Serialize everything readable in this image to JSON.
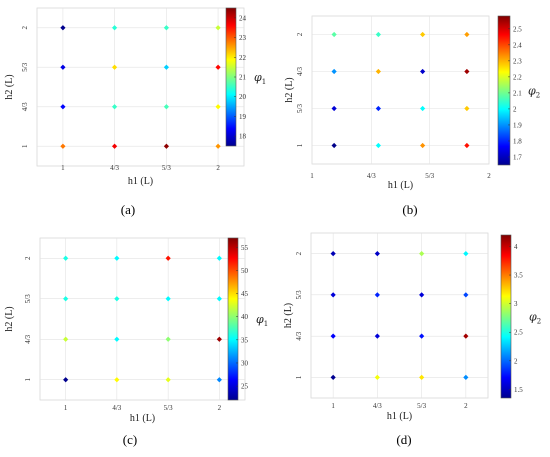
{
  "chart_data": [
    {
      "type": "scatter",
      "panel_label": "(a)",
      "xlabel": "h1 (L)",
      "ylabel": "h2 (L)",
      "xticks": [
        "1",
        "4/3",
        "5/3",
        "2"
      ],
      "yticks": [
        "1",
        "4/3",
        "5/3",
        "2"
      ],
      "xlim": [
        0.833,
        2.167
      ],
      "ylim": [
        0.833,
        2.167
      ],
      "colorbar": {
        "symbol": "φ",
        "subscript": "1",
        "min": 17.5,
        "max": 24.5,
        "ticks": [
          18,
          19,
          20,
          21,
          22,
          23,
          24
        ]
      },
      "points": [
        {
          "x": 1,
          "y": 2,
          "value": 17.6
        },
        {
          "x": 1.333,
          "y": 2,
          "value": 20.4
        },
        {
          "x": 1.667,
          "y": 2,
          "value": 20.5
        },
        {
          "x": 2,
          "y": 2,
          "value": 21.5
        },
        {
          "x": 1,
          "y": 1.667,
          "value": 18.2
        },
        {
          "x": 1.333,
          "y": 1.667,
          "value": 22.1
        },
        {
          "x": 1.667,
          "y": 1.667,
          "value": 19.8
        },
        {
          "x": 2,
          "y": 1.667,
          "value": 23.6
        },
        {
          "x": 1,
          "y": 1.333,
          "value": 18.4
        },
        {
          "x": 1.333,
          "y": 1.333,
          "value": 20.5
        },
        {
          "x": 1.667,
          "y": 1.333,
          "value": 20.6
        },
        {
          "x": 2,
          "y": 1.333,
          "value": 21.9
        },
        {
          "x": 1,
          "y": 1,
          "value": 22.8
        },
        {
          "x": 1.333,
          "y": 1,
          "value": 23.7
        },
        {
          "x": 1.667,
          "y": 1,
          "value": 24.4
        },
        {
          "x": 2,
          "y": 1,
          "value": 22.6
        }
      ]
    },
    {
      "type": "scatter",
      "panel_label": "(b)",
      "xlabel": "h1 (L)",
      "ylabel": "h2 (L)",
      "xticks": [
        "1",
        "4/3",
        "5/3",
        "2"
      ],
      "yticks": [
        "1",
        "5/3",
        "4/3",
        "2"
      ],
      "xlim": [
        1,
        2
      ],
      "ylim": [
        0,
        1
      ],
      "colorbar": {
        "symbol": "φ",
        "subscript": "2",
        "min": 1.65,
        "max": 2.58,
        "ticks": [
          1.7,
          1.8,
          1.9,
          2,
          2.1,
          2.2,
          2.3,
          2.4,
          2.5
        ]
      },
      "points": [
        {
          "x": 1.125,
          "y": 0.875,
          "value": 2.08
        },
        {
          "x": 1.375,
          "y": 0.875,
          "value": 2.05
        },
        {
          "x": 1.625,
          "y": 0.875,
          "value": 2.28
        },
        {
          "x": 1.875,
          "y": 0.875,
          "value": 2.32
        },
        {
          "x": 1.125,
          "y": 0.625,
          "value": 1.9
        },
        {
          "x": 1.375,
          "y": 0.625,
          "value": 2.3
        },
        {
          "x": 1.625,
          "y": 0.625,
          "value": 1.72
        },
        {
          "x": 1.875,
          "y": 0.625,
          "value": 2.55
        },
        {
          "x": 1.125,
          "y": 0.375,
          "value": 1.73
        },
        {
          "x": 1.375,
          "y": 0.375,
          "value": 1.8
        },
        {
          "x": 1.625,
          "y": 0.375,
          "value": 2.0
        },
        {
          "x": 1.875,
          "y": 0.375,
          "value": 2.28
        },
        {
          "x": 1.125,
          "y": 0.125,
          "value": 1.66
        },
        {
          "x": 1.375,
          "y": 0.125,
          "value": 2.0
        },
        {
          "x": 1.625,
          "y": 0.125,
          "value": 2.33
        },
        {
          "x": 1.875,
          "y": 0.125,
          "value": 2.45
        }
      ]
    },
    {
      "type": "scatter",
      "panel_label": "(c)",
      "xlabel": "h1 (L)",
      "ylabel": "h2 (L)",
      "xticks": [
        "1",
        "4/3",
        "5/3",
        "2"
      ],
      "yticks": [
        "1",
        "4/3",
        "5/3",
        "2"
      ],
      "xlim": [
        0.833,
        2.167
      ],
      "ylim": [
        0.833,
        2.167
      ],
      "colorbar": {
        "symbol": "φ",
        "subscript": "1",
        "min": 22,
        "max": 57,
        "ticks": [
          25,
          30,
          35,
          40,
          45,
          50,
          55
        ]
      },
      "points": [
        {
          "x": 1,
          "y": 2,
          "value": 36
        },
        {
          "x": 1.333,
          "y": 2,
          "value": 35
        },
        {
          "x": 1.667,
          "y": 2,
          "value": 52
        },
        {
          "x": 2,
          "y": 2,
          "value": 35
        },
        {
          "x": 1,
          "y": 1.667,
          "value": 36
        },
        {
          "x": 1.333,
          "y": 1.667,
          "value": 36
        },
        {
          "x": 1.667,
          "y": 1.667,
          "value": 35
        },
        {
          "x": 2,
          "y": 1.667,
          "value": 35
        },
        {
          "x": 1,
          "y": 1.333,
          "value": 42
        },
        {
          "x": 1.333,
          "y": 1.333,
          "value": 35
        },
        {
          "x": 1.667,
          "y": 1.333,
          "value": 40
        },
        {
          "x": 2,
          "y": 1.333,
          "value": 56
        },
        {
          "x": 1,
          "y": 1,
          "value": 22.5
        },
        {
          "x": 1.333,
          "y": 1,
          "value": 44
        },
        {
          "x": 1.667,
          "y": 1,
          "value": 43
        },
        {
          "x": 2,
          "y": 1,
          "value": 31
        }
      ]
    },
    {
      "type": "scatter",
      "panel_label": "(d)",
      "xlabel": "h1 (L)",
      "ylabel": "h2 (L)",
      "xticks": [
        "1",
        "4/3",
        "5/3",
        "2"
      ],
      "yticks": [
        "1",
        "4/3",
        "5/3",
        "2"
      ],
      "xlim": [
        0.833,
        2.167
      ],
      "ylim": [
        0.833,
        2.167
      ],
      "colorbar": {
        "symbol": "φ",
        "subscript": "2",
        "min": 1.35,
        "max": 4.2,
        "ticks": [
          1.5,
          2,
          2.5,
          3,
          3.5,
          4
        ]
      },
      "points": [
        {
          "x": 1,
          "y": 2,
          "value": 1.5
        },
        {
          "x": 1.333,
          "y": 2,
          "value": 1.55
        },
        {
          "x": 1.667,
          "y": 2,
          "value": 2.9
        },
        {
          "x": 2,
          "y": 2,
          "value": 2.4
        },
        {
          "x": 1,
          "y": 1.667,
          "value": 1.6
        },
        {
          "x": 1.333,
          "y": 1.667,
          "value": 1.8
        },
        {
          "x": 1.667,
          "y": 1.667,
          "value": 1.6
        },
        {
          "x": 2,
          "y": 1.667,
          "value": 1.9
        },
        {
          "x": 1,
          "y": 1.333,
          "value": 1.7
        },
        {
          "x": 1.333,
          "y": 1.333,
          "value": 1.6
        },
        {
          "x": 1.667,
          "y": 1.333,
          "value": 1.75
        },
        {
          "x": 2,
          "y": 1.333,
          "value": 4.1
        },
        {
          "x": 1,
          "y": 1,
          "value": 1.4
        },
        {
          "x": 1.333,
          "y": 1,
          "value": 3.1
        },
        {
          "x": 1.667,
          "y": 1,
          "value": 3.2
        },
        {
          "x": 2,
          "y": 1,
          "value": 2.1
        }
      ]
    }
  ]
}
